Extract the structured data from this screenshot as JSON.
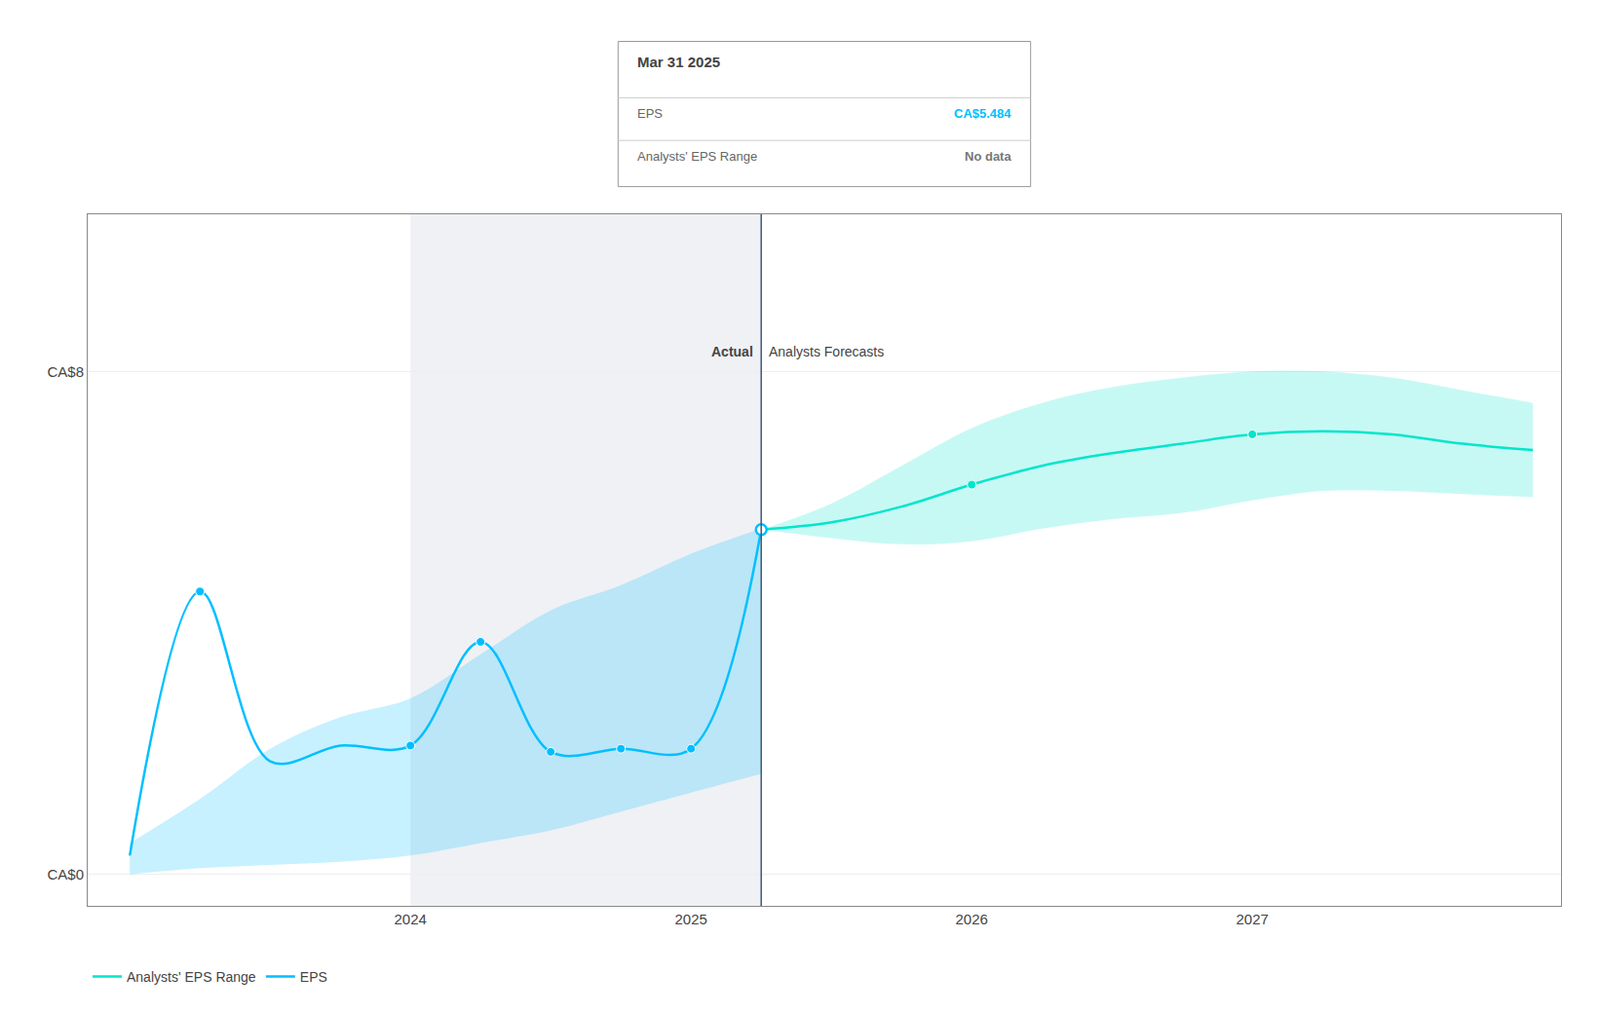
{
  "chart_data": {
    "type": "line",
    "xlim": [
      2022.85,
      2028.1
    ],
    "ylim": [
      -0.5,
      10.5
    ],
    "xticks": [
      2024.0,
      2025.0,
      2026.0,
      2027.0
    ],
    "yticks": [
      {
        "value": 0,
        "label": "CA$0"
      },
      {
        "value": 8,
        "label": "CA$8"
      }
    ],
    "grid": "y",
    "legend": "bottom",
    "series": [
      {
        "name": "EPS",
        "color": "#00bfff",
        "x": [
          2023.0,
          2023.25,
          2023.5,
          2023.75,
          2024.0,
          2024.25,
          2024.5,
          2024.75,
          2025.0,
          2025.25
        ],
        "values": [
          0.3,
          4.5,
          1.8,
          2.05,
          2.05,
          3.7,
          1.95,
          2.0,
          2.0,
          5.484
        ],
        "upper": [
          0.5,
          1.2,
          2.0,
          2.5,
          2.8,
          3.5,
          4.2,
          4.6,
          5.1,
          5.5
        ],
        "lower": [
          0.0,
          0.1,
          0.15,
          0.2,
          0.3,
          0.5,
          0.7,
          1.0,
          1.3,
          1.6
        ],
        "dots_x": [
          2023.25,
          2024.0,
          2024.25,
          2024.5,
          2024.75,
          2025.0
        ],
        "dots_values": [
          4.5,
          2.05,
          3.7,
          1.95,
          2.0,
          2.0
        ]
      },
      {
        "name": "Analysts' EPS Range",
        "color": "#00e5cc",
        "x": [
          2025.25,
          2025.5,
          2025.75,
          2026.0,
          2026.25,
          2026.5,
          2026.75,
          2027.0,
          2027.25,
          2027.5,
          2027.75,
          2028.0
        ],
        "values": [
          5.484,
          5.6,
          5.85,
          6.2,
          6.5,
          6.7,
          6.85,
          7.0,
          7.05,
          7.0,
          6.85,
          6.75
        ],
        "upper": [
          5.484,
          5.9,
          6.5,
          7.1,
          7.5,
          7.75,
          7.9,
          8.0,
          8.0,
          7.9,
          7.7,
          7.5
        ],
        "lower": [
          5.484,
          5.35,
          5.25,
          5.3,
          5.5,
          5.65,
          5.75,
          5.95,
          6.1,
          6.1,
          6.05,
          6.0
        ],
        "dots_x": [
          2026.0,
          2027.0
        ],
        "dots_values": [
          6.2,
          7.0
        ]
      }
    ],
    "highlight_start": 2024.0,
    "divider": {
      "x": 2025.25,
      "value": 5.484
    },
    "annotations": [
      "Actual",
      "Analysts Forecasts"
    ],
    "tooltip": {
      "title": "Mar 31 2025",
      "rows": [
        {
          "label": "EPS",
          "value": "CA$5.484",
          "color": "#00bfff"
        },
        {
          "label": "Analysts' EPS Range",
          "value": "No data",
          "color": "#777777"
        }
      ]
    }
  }
}
